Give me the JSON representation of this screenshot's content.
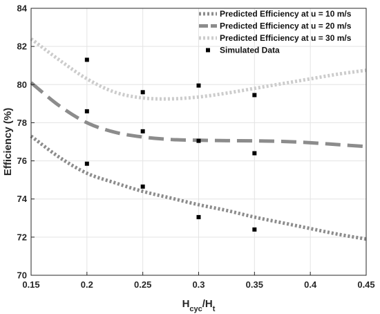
{
  "chart_data": {
    "type": "line",
    "title": "",
    "xlabel": {
      "main": "H",
      "sub1": "cyc",
      "sep": "/H",
      "sub2": "t"
    },
    "ylabel": "Efficiency (%)",
    "xlim": [
      0.15,
      0.45
    ],
    "ylim": [
      70,
      84
    ],
    "xticks": [
      0.15,
      0.2,
      0.25,
      0.3,
      0.35,
      0.4,
      0.45
    ],
    "xtick_labels": [
      "0.15",
      "0.2",
      "0.25",
      "0.3",
      "0.35",
      "0.4",
      "0.45"
    ],
    "yticks": [
      70,
      72,
      74,
      76,
      78,
      80,
      82,
      84
    ],
    "ytick_labels": [
      "70",
      "72",
      "74",
      "76",
      "78",
      "80",
      "82",
      "84"
    ],
    "grid": true,
    "legend_position": "top-right",
    "series": [
      {
        "name": "Predicted Efficiency at u = 10 m/s",
        "style": "dotted",
        "color": "#8c8c8c",
        "x": [
          0.15,
          0.175,
          0.2,
          0.225,
          0.25,
          0.275,
          0.3,
          0.325,
          0.35,
          0.375,
          0.4,
          0.425,
          0.45
        ],
        "y": [
          77.3,
          76.2,
          75.35,
          74.85,
          74.4,
          74.05,
          73.7,
          73.4,
          73.05,
          72.75,
          72.45,
          72.15,
          71.9
        ]
      },
      {
        "name": "Predicted Efficiency at u = 20 m/s",
        "style": "dashed",
        "color": "#8c8c8c",
        "x": [
          0.15,
          0.175,
          0.2,
          0.225,
          0.25,
          0.275,
          0.3,
          0.325,
          0.35,
          0.375,
          0.4,
          0.425,
          0.45
        ],
        "y": [
          80.1,
          78.9,
          78.0,
          77.5,
          77.25,
          77.12,
          77.08,
          77.06,
          77.05,
          77.02,
          76.95,
          76.85,
          76.75
        ]
      },
      {
        "name": "Predicted Efficiency at u = 30 m/s",
        "style": "dotted",
        "color": "#cccccc",
        "x": [
          0.15,
          0.175,
          0.2,
          0.225,
          0.25,
          0.275,
          0.3,
          0.325,
          0.35,
          0.375,
          0.4,
          0.425,
          0.45
        ],
        "y": [
          82.4,
          81.3,
          80.3,
          79.6,
          79.3,
          79.25,
          79.35,
          79.55,
          79.8,
          80.05,
          80.3,
          80.55,
          80.75
        ]
      },
      {
        "name": "Simulated Data",
        "style": "markers",
        "color": "#000000",
        "x": [
          0.2,
          0.2,
          0.2,
          0.25,
          0.25,
          0.25,
          0.3,
          0.3,
          0.3,
          0.35,
          0.35,
          0.35
        ],
        "y": [
          81.3,
          78.6,
          75.85,
          79.6,
          77.55,
          74.65,
          79.95,
          77.05,
          73.05,
          79.45,
          76.4,
          72.4
        ]
      }
    ]
  }
}
